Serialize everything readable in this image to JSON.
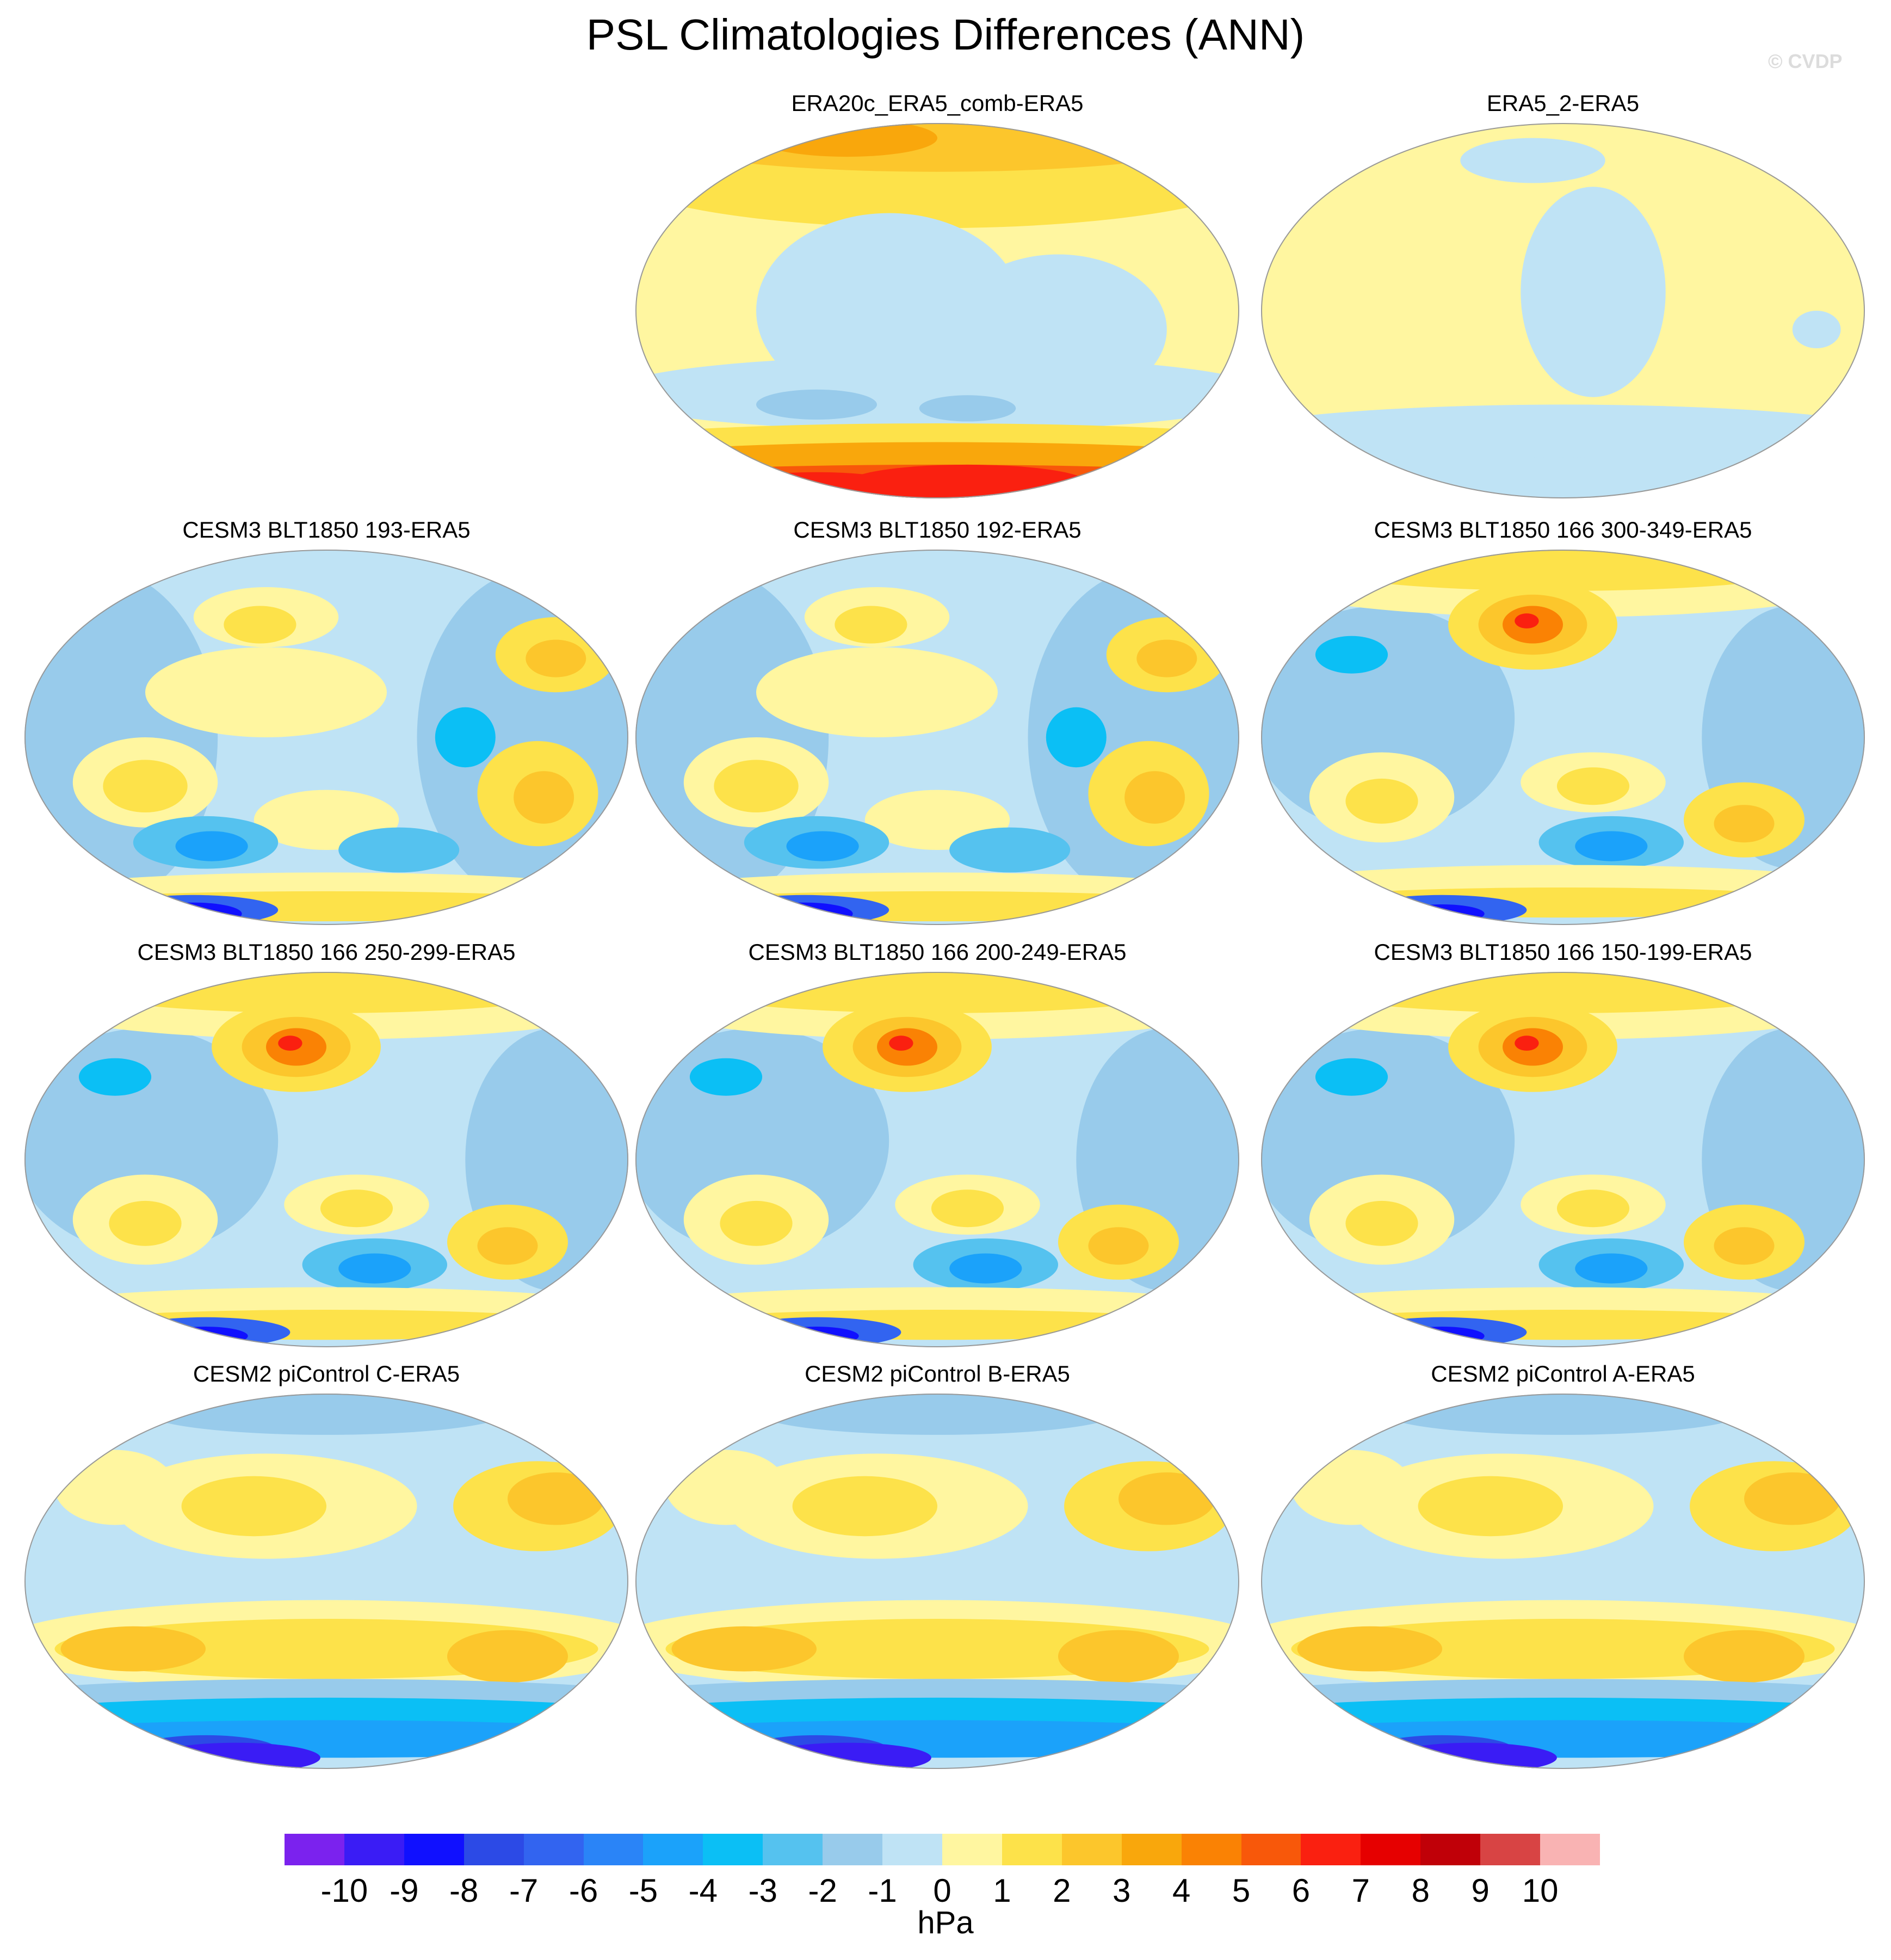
{
  "title": "PSL Climatologies Differences (ANN)",
  "credit": "© CVDP",
  "units": "hPa",
  "chart_data": {
    "type": "heatmap",
    "variable": "PSL",
    "season": "ANN",
    "projection": "global map (Robinson-like)",
    "panels": [
      {
        "name": "ERA20c_ERA5_comb-ERA5",
        "pattern": "north-high-south-very-high",
        "row": 1,
        "col": 2
      },
      {
        "name": "ERA5_2-ERA5",
        "pattern": "near-zero",
        "row": 1,
        "col": 3
      },
      {
        "name": "CESM3 BLT1850 193-ERA5",
        "pattern": "cesm3-a",
        "row": 2,
        "col": 1
      },
      {
        "name": "CESM3 BLT1850 192-ERA5",
        "pattern": "cesm3-a",
        "row": 2,
        "col": 2
      },
      {
        "name": "CESM3 BLT1850 166 300-349-ERA5",
        "pattern": "cesm3-b",
        "row": 2,
        "col": 3
      },
      {
        "name": "CESM3 BLT1850 166 250-299-ERA5",
        "pattern": "cesm3-b",
        "row": 3,
        "col": 1
      },
      {
        "name": "CESM3 BLT1850 166 200-249-ERA5",
        "pattern": "cesm3-b",
        "row": 3,
        "col": 2
      },
      {
        "name": "CESM3 BLT1850 166 150-199-ERA5",
        "pattern": "cesm3-b",
        "row": 3,
        "col": 3
      },
      {
        "name": "CESM2 piControl C-ERA5",
        "pattern": "cesm2",
        "row": 4,
        "col": 1
      },
      {
        "name": "CESM2 piControl B-ERA5",
        "pattern": "cesm2",
        "row": 4,
        "col": 2
      },
      {
        "name": "CESM2 piControl A-ERA5",
        "pattern": "cesm2",
        "row": 4,
        "col": 3
      }
    ],
    "colorbar": {
      "labels": [
        "-10",
        "-9",
        "-8",
        "-7",
        "-6",
        "-5",
        "-4",
        "-3",
        "-2",
        "-1",
        "0",
        "1",
        "2",
        "3",
        "4",
        "5",
        "6",
        "7",
        "8",
        "9",
        "10"
      ],
      "colors": [
        "#7b22ee",
        "#3a1cf5",
        "#1010ff",
        "#2c4ae6",
        "#3264f0",
        "#2a84f7",
        "#1ba2fa",
        "#0bbff5",
        "#55c2ef",
        "#98cbeb",
        "#bfe3f5",
        "#fff6a0",
        "#fde24a",
        "#fcc62c",
        "#f9a70c",
        "#fa8204",
        "#f8580a",
        "#fa2010",
        "#e60000",
        "#c00008",
        "#d84444",
        "#f9b3b3"
      ],
      "min": -10,
      "max": 10,
      "step": 1
    }
  }
}
